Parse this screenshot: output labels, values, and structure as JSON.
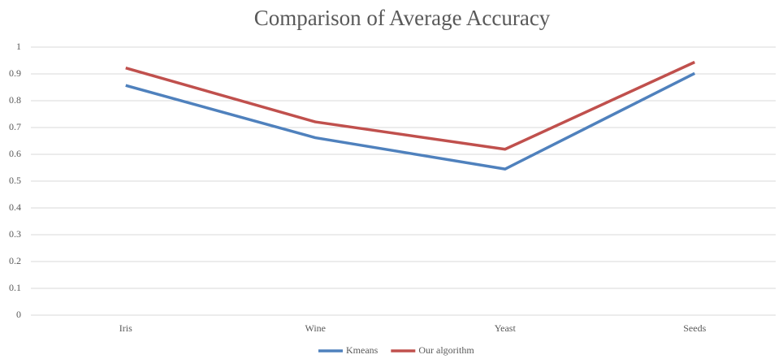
{
  "chart_data": {
    "type": "line",
    "title": "Comparison of Average Accuracy",
    "categories": [
      "Iris",
      "Wine",
      "Yeast",
      "Seeds"
    ],
    "series": [
      {
        "name": "Kmeans",
        "color": "#4f81bd",
        "values": [
          0.857,
          0.662,
          0.545,
          0.902
        ]
      },
      {
        "name": "Our algorithm",
        "color": "#c0504d",
        "values": [
          0.922,
          0.721,
          0.619,
          0.944
        ]
      }
    ],
    "ylim": [
      0,
      1
    ],
    "yticks": [
      0,
      0.1,
      0.2,
      0.3,
      0.4,
      0.5,
      0.6,
      0.7,
      0.8,
      0.9,
      1
    ],
    "grid": true,
    "legend": "bottom"
  }
}
